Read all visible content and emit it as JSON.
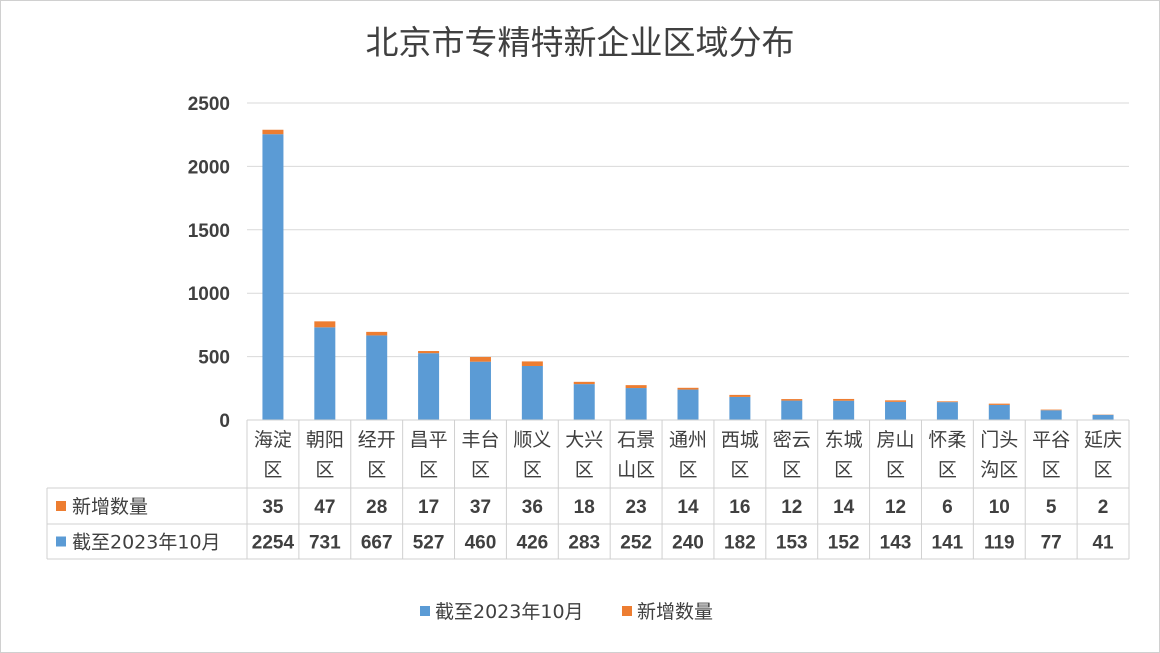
{
  "chart_data": {
    "type": "bar",
    "stacked": true,
    "title": "北京市专精特新企业区域分布",
    "categories": [
      [
        "海淀",
        "区"
      ],
      [
        "朝阳",
        "区"
      ],
      [
        "经开",
        "区"
      ],
      [
        "昌平",
        "区"
      ],
      [
        "丰台",
        "区"
      ],
      [
        "顺义",
        "区"
      ],
      [
        "大兴",
        "区"
      ],
      [
        "石景",
        "山区"
      ],
      [
        "通州",
        "区"
      ],
      [
        "西城",
        "区"
      ],
      [
        "密云",
        "区"
      ],
      [
        "东城",
        "区"
      ],
      [
        "房山",
        "区"
      ],
      [
        "怀柔",
        "区"
      ],
      [
        "门头",
        "沟区"
      ],
      [
        "平谷",
        "区"
      ],
      [
        "延庆",
        "区"
      ]
    ],
    "series": [
      {
        "name": "截至2023年10月",
        "color": "#5B9BD5",
        "values": [
          2254,
          731,
          667,
          527,
          460,
          426,
          283,
          252,
          240,
          182,
          153,
          152,
          143,
          141,
          119,
          77,
          41
        ]
      },
      {
        "name": "新增数量",
        "color": "#ED7D31",
        "values": [
          35,
          47,
          28,
          17,
          37,
          36,
          18,
          23,
          14,
          16,
          12,
          14,
          12,
          6,
          10,
          5,
          2
        ]
      }
    ],
    "table_row_order": [
      "新增数量",
      "截至2023年10月"
    ],
    "legend_order": [
      "截至2023年10月",
      "新增数量"
    ],
    "ylim": [
      0,
      2500
    ],
    "yticks": [
      0,
      500,
      1000,
      1500,
      2000,
      2500
    ],
    "grid": true,
    "legend_position": "bottom"
  }
}
